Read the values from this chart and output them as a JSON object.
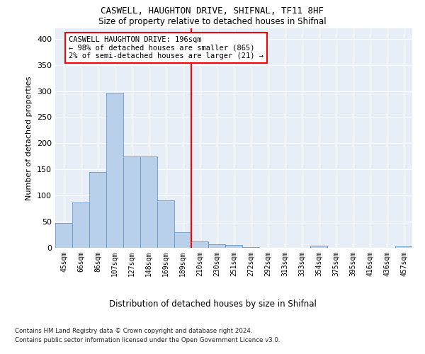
{
  "title1": "CASWELL, HAUGHTON DRIVE, SHIFNAL, TF11 8HF",
  "title2": "Size of property relative to detached houses in Shifnal",
  "xlabel": "Distribution of detached houses by size in Shifnal",
  "ylabel": "Number of detached properties",
  "bar_labels": [
    "45sqm",
    "66sqm",
    "86sqm",
    "107sqm",
    "127sqm",
    "148sqm",
    "169sqm",
    "189sqm",
    "210sqm",
    "230sqm",
    "251sqm",
    "272sqm",
    "292sqm",
    "313sqm",
    "333sqm",
    "354sqm",
    "375sqm",
    "395sqm",
    "416sqm",
    "436sqm",
    "457sqm"
  ],
  "bar_values": [
    47,
    87,
    145,
    297,
    175,
    175,
    91,
    30,
    12,
    7,
    5,
    2,
    0,
    0,
    0,
    4,
    0,
    0,
    0,
    0,
    3
  ],
  "bar_color": "#b8d0ea",
  "bar_edgecolor": "#6699cc",
  "background_color": "#e8eef8",
  "grid_color": "#ffffff",
  "vline_x": 7.5,
  "vline_color": "red",
  "annotation_text": "CASWELL HAUGHTON DRIVE: 196sqm\n← 98% of detached houses are smaller (865)\n2% of semi-detached houses are larger (21) →",
  "annotation_box_color": "white",
  "annotation_box_edgecolor": "red",
  "ylim": [
    0,
    420
  ],
  "yticks": [
    0,
    50,
    100,
    150,
    200,
    250,
    300,
    350,
    400
  ],
  "footnote1": "Contains HM Land Registry data © Crown copyright and database right 2024.",
  "footnote2": "Contains public sector information licensed under the Open Government Licence v3.0."
}
